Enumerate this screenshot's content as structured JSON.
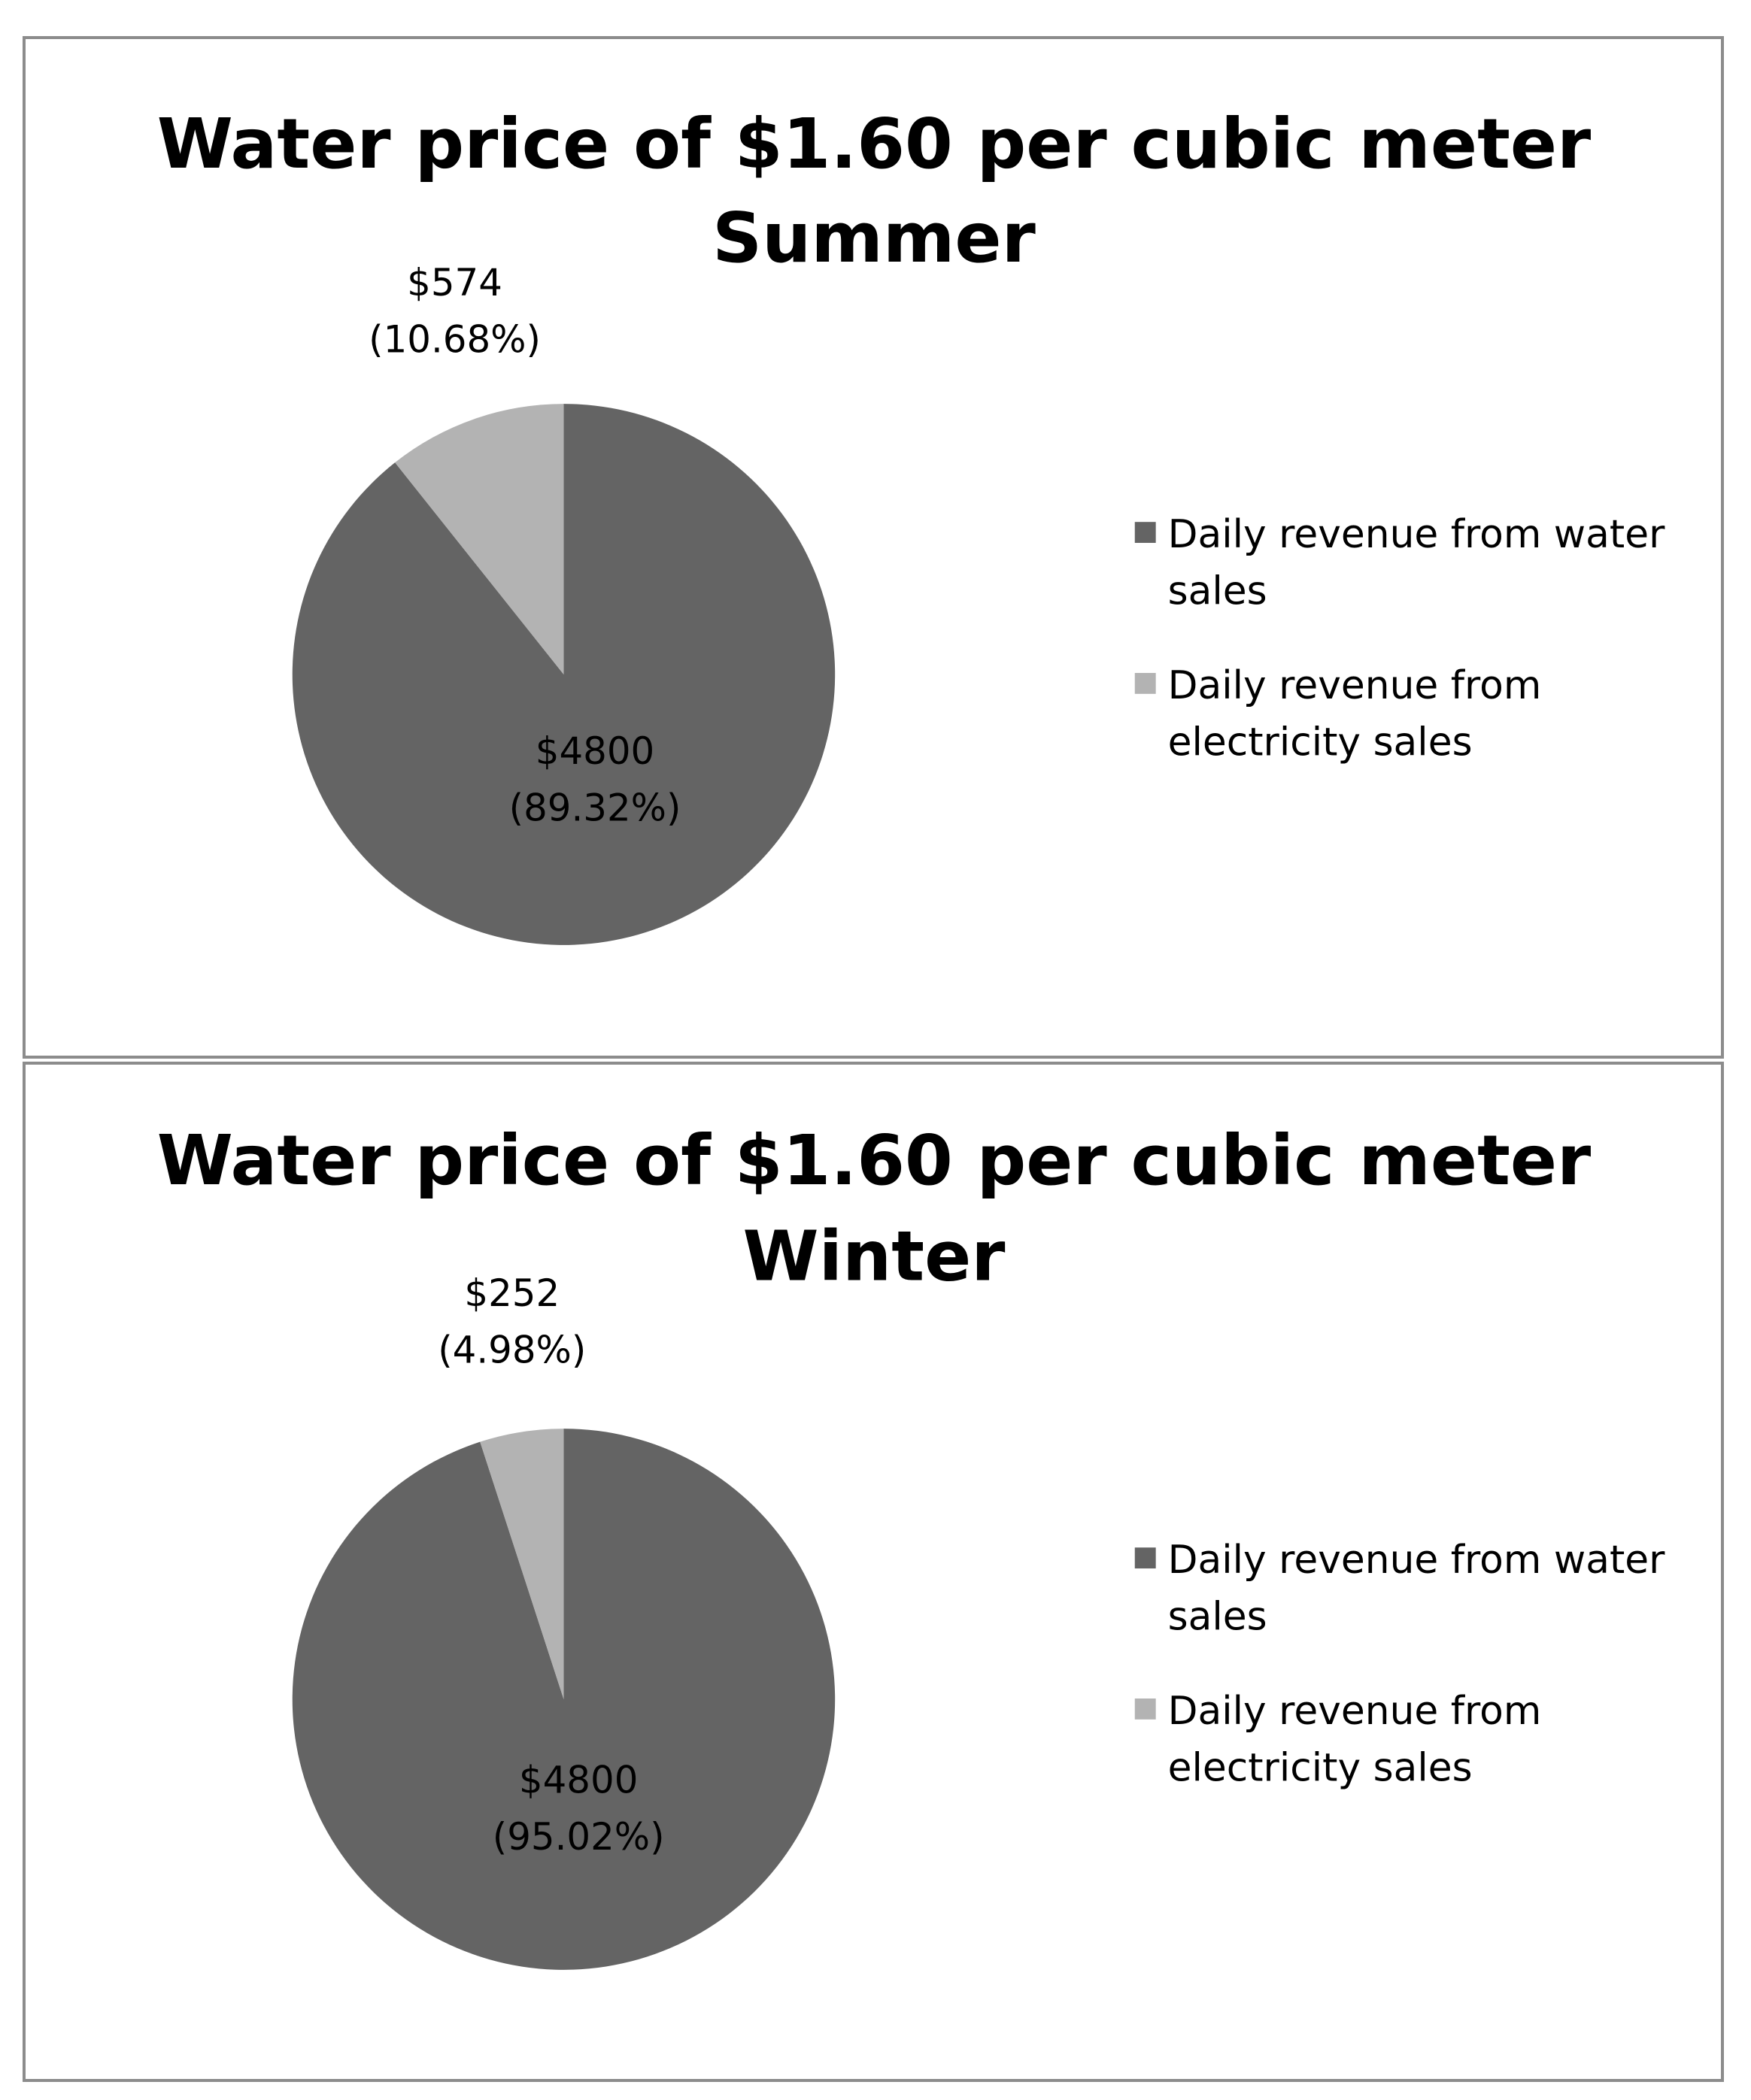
{
  "chart_data": [
    {
      "type": "pie",
      "title": "Water price of $1.60 per cubic meter",
      "subtitle": "Summer",
      "legend_position": "right",
      "series": [
        {
          "name": "Daily revenue from water sales",
          "value": 4800,
          "percent": 89.32,
          "label_value": "$4800",
          "label_percent": "(89.32%)",
          "color": "#646464",
          "legend_lines": [
            "Daily revenue from water",
            "sales"
          ]
        },
        {
          "name": "Daily revenue from electricity sales",
          "value": 574,
          "percent": 10.68,
          "label_value": "$574",
          "label_percent": "(10.68%)",
          "color": "#b3b3b3",
          "legend_lines": [
            "Daily revenue from",
            "electricity sales"
          ]
        }
      ]
    },
    {
      "type": "pie",
      "title": "Water price of $1.60 per cubic meter",
      "subtitle": "Winter",
      "legend_position": "right",
      "series": [
        {
          "name": "Daily revenue from water sales",
          "value": 4800,
          "percent": 95.02,
          "label_value": "$4800",
          "label_percent": "(95.02%)",
          "color": "#646464",
          "legend_lines": [
            "Daily revenue from water",
            "sales"
          ]
        },
        {
          "name": "Daily revenue from electricity sales",
          "value": 252,
          "percent": 4.98,
          "label_value": "$252",
          "label_percent": "(4.98%)",
          "color": "#b3b3b3",
          "legend_lines": [
            "Daily revenue from",
            "electricity sales"
          ]
        }
      ]
    }
  ]
}
